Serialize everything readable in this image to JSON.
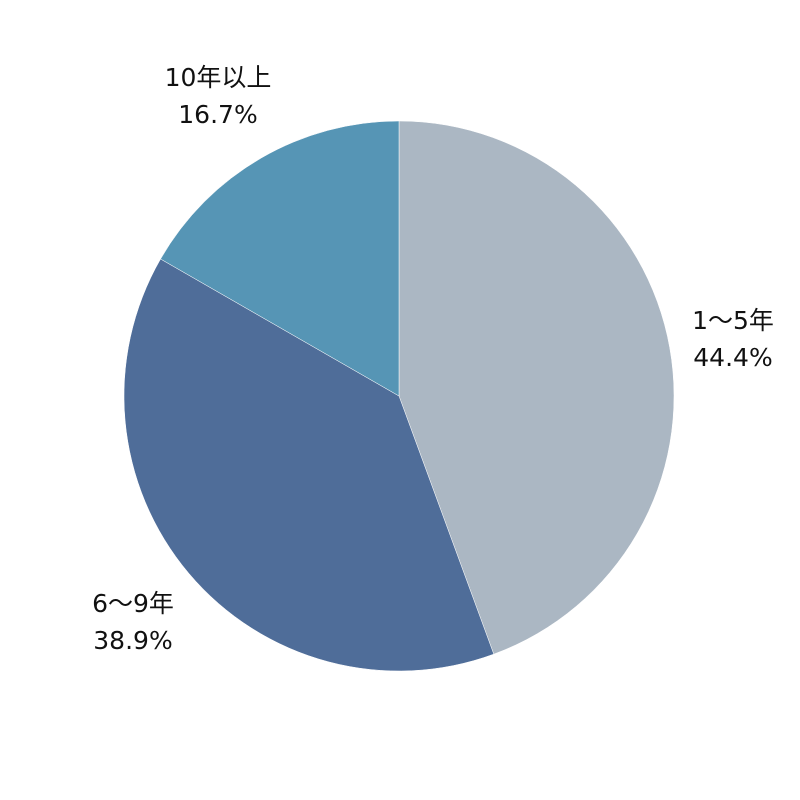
{
  "chart_data": {
    "type": "pie",
    "start": "top",
    "direction": "clockwise",
    "slices": [
      {
        "label": "1〜5年",
        "value": 44.4,
        "value_label": "44.4%",
        "color": "#abb7c3"
      },
      {
        "label": "6〜9年",
        "value": 38.9,
        "value_label": "38.9%",
        "color": "#4f6d99"
      },
      {
        "label": "10年以上",
        "value": 16.7,
        "value_label": "16.7%",
        "color": "#5695b5"
      }
    ]
  }
}
